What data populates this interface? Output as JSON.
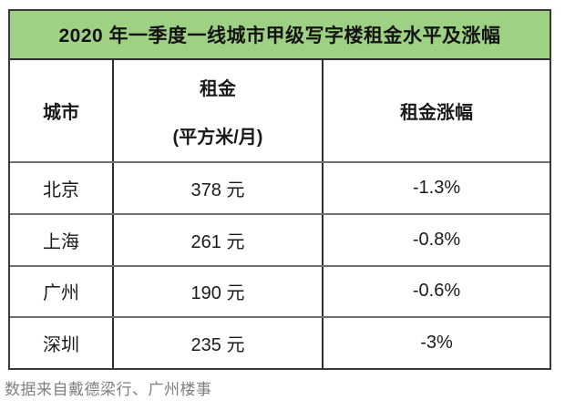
{
  "title": "2020 年一季度一线城市甲级写字楼租金水平及涨幅",
  "colors": {
    "header_green": "#9ed184",
    "outer_border": "#3a3a3a",
    "row_divider": "#6f6f6f",
    "footer_text": "#7f7f7f"
  },
  "table": {
    "columns": {
      "city": "城市",
      "rent_line1": "租金",
      "rent_line2": "(平方米/月)",
      "change": "租金涨幅"
    },
    "rows": [
      {
        "city": "北京",
        "rent": "378 元",
        "change": "-1.3%"
      },
      {
        "city": "上海",
        "rent": "261 元",
        "change": "-0.8%"
      },
      {
        "city": "广州",
        "rent": "190 元",
        "change": "-0.6%"
      },
      {
        "city": "深圳",
        "rent": "235 元",
        "change": "-3%"
      }
    ]
  },
  "footer": {
    "source": "数据来自戴德梁行、广州楼事"
  },
  "chart_data": {
    "type": "table",
    "title": "2020 年一季度一线城市甲级写字楼租金水平及涨幅",
    "columns": [
      "城市",
      "租金 (平方米/月)",
      "租金涨幅"
    ],
    "rows": [
      [
        "北京",
        "378 元",
        "-1.3%"
      ],
      [
        "上海",
        "261 元",
        "-0.8%"
      ],
      [
        "广州",
        "190 元",
        "-0.6%"
      ],
      [
        "深圳",
        "235 元",
        "-3%"
      ]
    ],
    "cities": [
      "北京",
      "上海",
      "广州",
      "深圳"
    ],
    "rent_yuan_per_sqm_month": [
      378,
      261,
      190,
      235
    ],
    "rent_change_pct": [
      -1.3,
      -0.8,
      -0.6,
      -3
    ],
    "source_note": "数据来自戴德梁行、广州楼事"
  }
}
